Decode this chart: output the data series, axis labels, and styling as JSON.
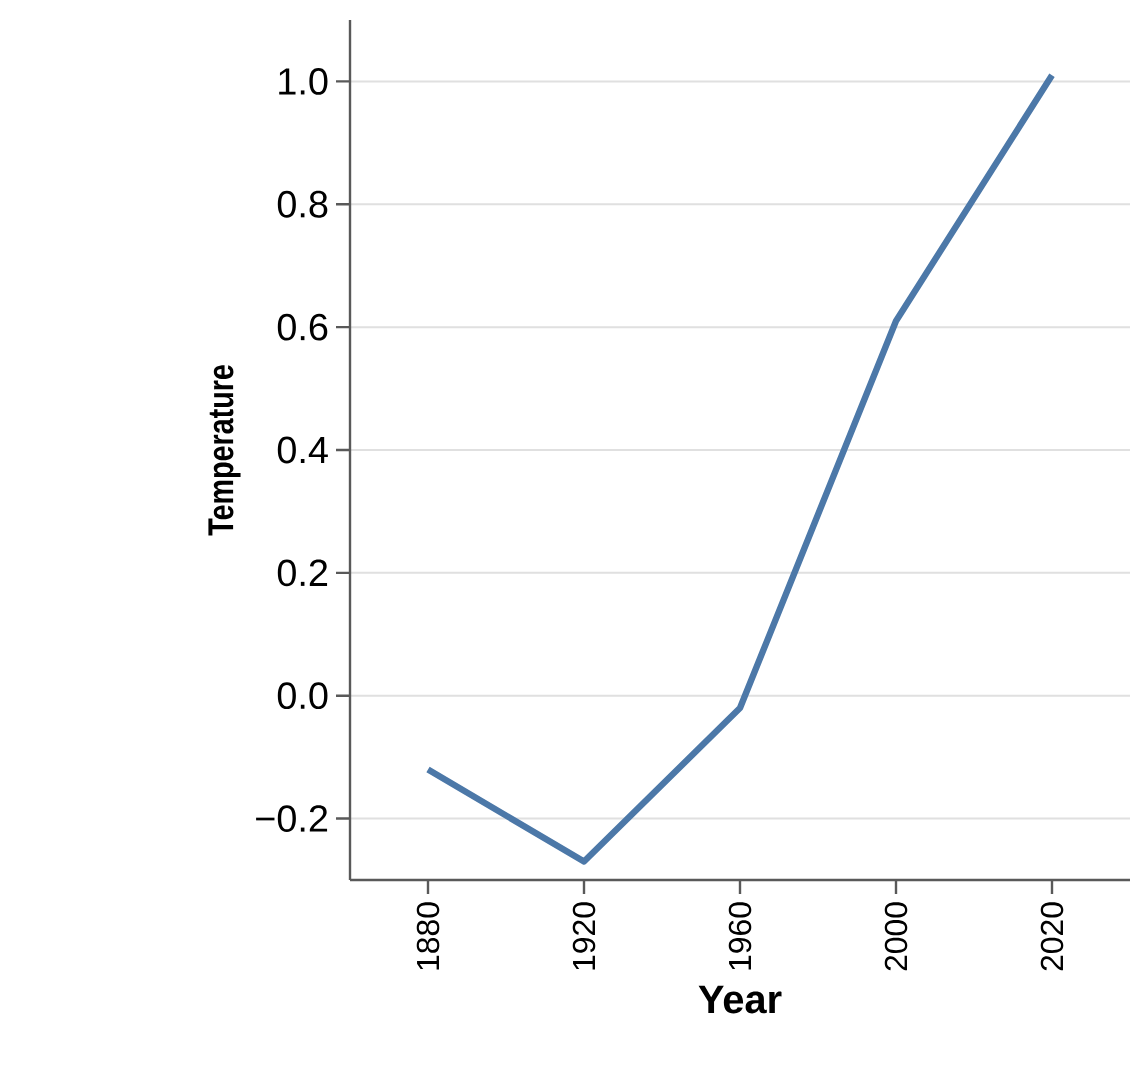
{
  "chart_data": {
    "type": "line",
    "xlabel": "Year",
    "ylabel": "Temperature",
    "categories": [
      "1880",
      "1920",
      "1960",
      "2000",
      "2020"
    ],
    "series": [
      {
        "color": "#4c78a8",
        "values": [
          -0.12,
          -0.27,
          -0.02,
          0.61,
          1.01
        ]
      }
    ],
    "ylim": [
      -0.3,
      1.1
    ],
    "yticks": [
      {
        "value": -0.2,
        "label": "−0.2"
      },
      {
        "value": 0.0,
        "label": "0.0"
      },
      {
        "value": 0.2,
        "label": "0.2"
      },
      {
        "value": 0.4,
        "label": "0.4"
      },
      {
        "value": 0.6,
        "label": "0.6"
      },
      {
        "value": 0.8,
        "label": "0.8"
      },
      {
        "value": 1.0,
        "label": "1.0"
      }
    ],
    "grid": "y",
    "marker": "none",
    "line_style": "solid"
  }
}
